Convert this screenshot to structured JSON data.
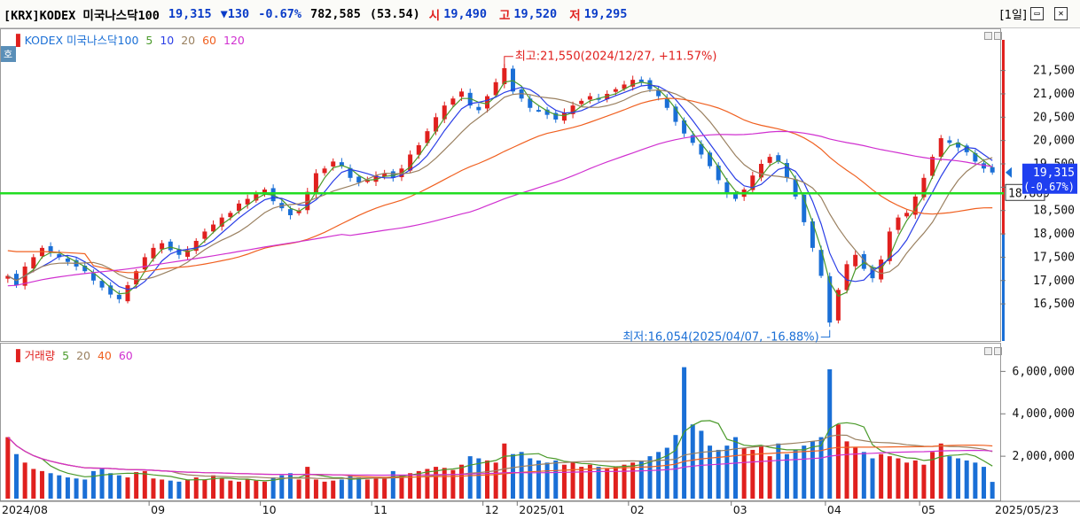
{
  "header": {
    "name": "[KRX]KODEX 미국나스닥100",
    "price": "19,315",
    "change": "▼130",
    "change_pct": "-0.67%",
    "volume": "782,585",
    "volume_ratio": "(53.54)",
    "open_label": "시",
    "open": "19,490",
    "high_label": "고",
    "high": "19,520",
    "low_label": "저",
    "low": "19,295",
    "period": "[1일]"
  },
  "colors": {
    "up": "#e0201e",
    "down": "#1a6fd6",
    "ma5": "#4a9a2a",
    "ma10": "#2a3ee6",
    "ma20": "#9a8060",
    "ma60": "#f06020",
    "ma120": "#d030d0",
    "hline": "#22dd22"
  },
  "legend_price": {
    "prefix": "▌",
    "name": "KODEX 미국나스닥100",
    "ma5": "5",
    "ma10": "10",
    "ma20": "20",
    "ma60": "60",
    "ma120": "120"
  },
  "legend_volume": {
    "prefix": "▌",
    "name": "거래량",
    "ma5": "5",
    "ma20": "20",
    "ma40": "40",
    "ma60": "60"
  },
  "ho_tag": "호",
  "chart_data": [
    {
      "type": "candlestick",
      "title": "KODEX 미국나스닥100",
      "ylim": [
        15800,
        22100
      ],
      "y_ticks": [
        "21,500",
        "21,000",
        "20,500",
        "20,000",
        "19,500",
        "19,000",
        "18,500",
        "18,000",
        "17,500",
        "17,000",
        "16,500"
      ],
      "x_labels": [
        "2024/08",
        "09",
        "10",
        "11",
        "12",
        "2025/01",
        "02",
        "03",
        "04",
        "05",
        "2025/05/23"
      ],
      "current_price_label": "19,315",
      "current_change_label": "(-0.67%)",
      "horizontal_line": {
        "value": 18869,
        "label": "18,869"
      },
      "annotations": {
        "high": "최고:21,550(2024/12/27, +11.57%)",
        "low": "최저:16,054(2025/04/07, -16.88%)"
      },
      "close_series": [
        17100,
        16900,
        17300,
        17500,
        17700,
        17600,
        17500,
        17400,
        17300,
        17200,
        17000,
        16850,
        16700,
        16600,
        16900,
        17200,
        17500,
        17700,
        17800,
        17650,
        17550,
        17650,
        17850,
        18050,
        18200,
        18350,
        18450,
        18650,
        18750,
        18850,
        18950,
        18700,
        18550,
        18400,
        18500,
        18900,
        19300,
        19400,
        19550,
        19450,
        19200,
        19100,
        19150,
        19250,
        19300,
        19200,
        19400,
        19700,
        19900,
        20200,
        20500,
        20750,
        20900,
        21050,
        20750,
        20650,
        20950,
        21250,
        21550,
        21050,
        20900,
        20700,
        20650,
        20550,
        20450,
        20600,
        20750,
        20850,
        20950,
        20900,
        21000,
        21100,
        21200,
        21300,
        21250,
        21100,
        20950,
        20700,
        20400,
        20150,
        19950,
        19700,
        19450,
        19150,
        18850,
        18750,
        18950,
        19250,
        19500,
        19650,
        19550,
        19200,
        18800,
        18250,
        17700,
        17100,
        16100,
        16800,
        17350,
        17550,
        17250,
        17050,
        17450,
        18050,
        18350,
        18450,
        18800,
        19200,
        19650,
        20050,
        19950,
        19850,
        19750,
        19550,
        19400,
        19315
      ],
      "x_dates": [
        "2024-07-24",
        "2024-07-26",
        "2024-07-29",
        "2024-07-31",
        "2024-08-02",
        "2024-08-05",
        "2024-08-07",
        "2024-08-09",
        "2024-08-12",
        "2024-08-14",
        "2024-08-16",
        "2024-08-19",
        "2024-08-21",
        "2024-08-23",
        "2024-08-26",
        "2024-08-28",
        "2024-08-30",
        "2024-09-02",
        "2024-09-04",
        "2024-09-06",
        "2024-09-09",
        "2024-09-11",
        "2024-09-13",
        "2024-09-16",
        "2024-09-18",
        "2024-09-20",
        "2024-09-23",
        "2024-09-25",
        "2024-09-27",
        "2024-09-30",
        "2024-10-02",
        "2024-10-04",
        "2024-10-07",
        "2024-10-09",
        "2024-10-11",
        "2024-10-14",
        "2024-10-16",
        "2024-10-18",
        "2024-10-21",
        "2024-10-23",
        "2024-10-25",
        "2024-10-28",
        "2024-10-30",
        "2024-11-01",
        "2024-11-04",
        "2024-11-06",
        "2024-11-08",
        "2024-11-11",
        "2024-11-13",
        "2024-11-15",
        "2024-11-18",
        "2024-11-20",
        "2024-11-22",
        "2024-11-25",
        "2024-11-27",
        "2024-11-29",
        "2024-12-02",
        "2024-12-04",
        "2024-12-27",
        "2024-12-30",
        "2025-01-02",
        "2025-01-06",
        "2025-01-08",
        "2025-01-10",
        "2025-01-13",
        "2025-01-15",
        "2025-01-17",
        "2025-01-20",
        "2025-01-22",
        "2025-01-24",
        "2025-01-27",
        "2025-01-29",
        "2025-01-31",
        "2025-02-03",
        "2025-02-05",
        "2025-02-07",
        "2025-02-10",
        "2025-02-12",
        "2025-02-14",
        "2025-02-17",
        "2025-02-19",
        "2025-02-21",
        "2025-02-24",
        "2025-02-26",
        "2025-02-28",
        "2025-03-03",
        "2025-03-05",
        "2025-03-07",
        "2025-03-10",
        "2025-03-12",
        "2025-03-14",
        "2025-03-17",
        "2025-03-19",
        "2025-03-21",
        "2025-03-24",
        "2025-03-26",
        "2025-04-07",
        "2025-04-09",
        "2025-04-11",
        "2025-04-14",
        "2025-04-16",
        "2025-04-18",
        "2025-04-21",
        "2025-04-23",
        "2025-04-25",
        "2025-04-28",
        "2025-04-30",
        "2025-05-02",
        "2025-05-05",
        "2025-05-07",
        "2025-05-09",
        "2025-05-12",
        "2025-05-14",
        "2025-05-16",
        "2025-05-20",
        "2025-05-23"
      ]
    },
    {
      "type": "bar",
      "title": "거래량",
      "ylim": [
        0,
        6600000
      ],
      "y_ticks": [
        "6,000,000",
        "4,000,000",
        "2,000,000"
      ],
      "values": [
        2900000,
        2100000,
        1700000,
        1400000,
        1300000,
        1200000,
        1100000,
        1000000,
        950000,
        900000,
        1300000,
        1400000,
        1200000,
        1100000,
        1000000,
        1250000,
        1300000,
        950000,
        900000,
        850000,
        800000,
        900000,
        1000000,
        900000,
        1100000,
        950000,
        850000,
        800000,
        900000,
        850000,
        800000,
        1000000,
        1100000,
        1200000,
        900000,
        1500000,
        900000,
        800000,
        850000,
        900000,
        1100000,
        1000000,
        900000,
        950000,
        1000000,
        1300000,
        1100000,
        1200000,
        1300000,
        1400000,
        1500000,
        1450000,
        1350000,
        1600000,
        2000000,
        1900000,
        1800000,
        1700000,
        2600000,
        2100000,
        2200000,
        1900000,
        1800000,
        1700000,
        1800000,
        1600000,
        1700000,
        1500000,
        1600000,
        1500000,
        1400000,
        1500000,
        1600000,
        1700000,
        1800000,
        2000000,
        2200000,
        2400000,
        3000000,
        6200000,
        3500000,
        3200000,
        2500000,
        2300000,
        2500000,
        2900000,
        2400000,
        2300000,
        2500000,
        2000000,
        2600000,
        2100000,
        2300000,
        2500000,
        2700000,
        2900000,
        6100000,
        3500000,
        2700000,
        2400000,
        2200000,
        1900000,
        2100000,
        2000000,
        1900000,
        1700000,
        1800000,
        1600000,
        2200000,
        2600000,
        2000000,
        1900000,
        1800000,
        1700000,
        1500000,
        790000
      ]
    }
  ]
}
